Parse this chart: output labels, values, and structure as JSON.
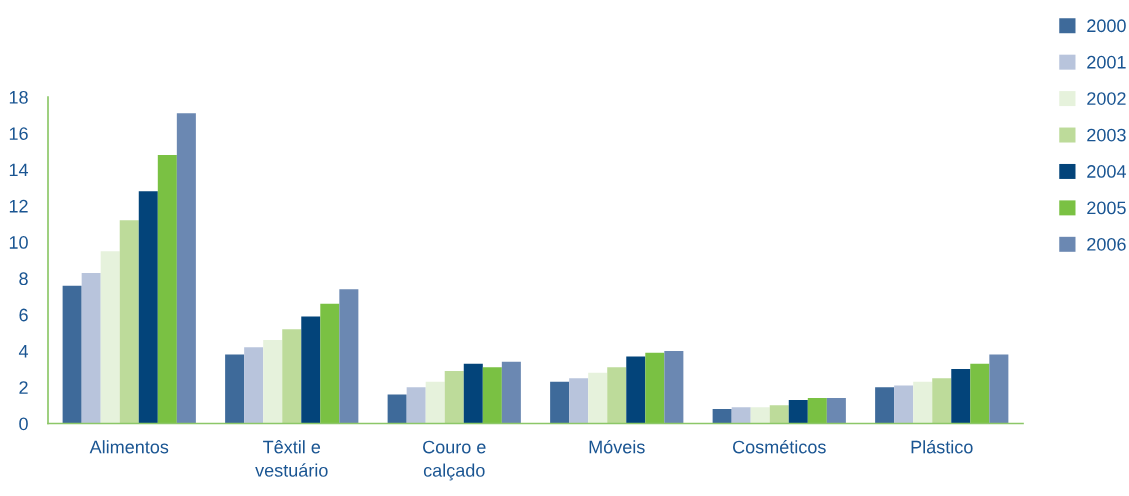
{
  "chart_data": {
    "type": "bar",
    "categories": [
      "Alimentos",
      "Têxtil e\nvestuário",
      "Couro e\ncalçado",
      "Móveis",
      "Cosméticos",
      "Plástico"
    ],
    "series": [
      {
        "name": "2000",
        "color": "#3e6a9a",
        "values": [
          7.6,
          3.8,
          1.6,
          2.3,
          0.8,
          2.0
        ]
      },
      {
        "name": "2001",
        "color": "#b8c4dc",
        "values": [
          8.3,
          4.2,
          2.0,
          2.5,
          0.9,
          2.1
        ]
      },
      {
        "name": "2002",
        "color": "#e6f2dc",
        "values": [
          9.5,
          4.6,
          2.3,
          2.8,
          0.9,
          2.3
        ]
      },
      {
        "name": "2003",
        "color": "#bddb9a",
        "values": [
          11.2,
          5.2,
          2.9,
          3.1,
          1.0,
          2.5
        ]
      },
      {
        "name": "2004",
        "color": "#03447a",
        "values": [
          12.8,
          5.9,
          3.3,
          3.7,
          1.3,
          3.0
        ]
      },
      {
        "name": "2005",
        "color": "#7ac143",
        "values": [
          14.8,
          6.6,
          3.1,
          3.9,
          1.4,
          3.3
        ]
      },
      {
        "name": "2006",
        "color": "#6b88b2",
        "values": [
          17.1,
          7.4,
          3.4,
          4.0,
          1.4,
          3.8
        ]
      }
    ],
    "ylim": [
      0,
      18
    ],
    "yticks": [
      0,
      2,
      4,
      6,
      8,
      10,
      12,
      14,
      16,
      18
    ],
    "grid": false,
    "legend": "top right"
  }
}
